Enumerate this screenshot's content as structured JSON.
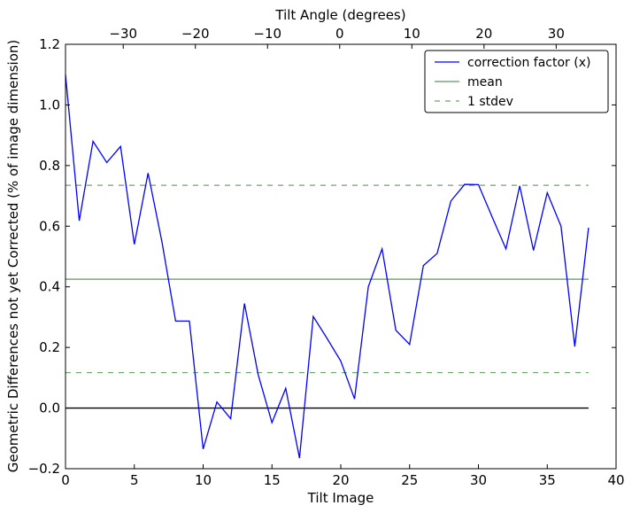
{
  "chart_data": {
    "type": "line",
    "xlabel": "Tilt Image",
    "ylabel": "Geometric Differences not yet Corrected (% of image dimension)",
    "top_xlabel": "Tilt Angle (degrees)",
    "xlim": [
      0,
      40
    ],
    "ylim": [
      -0.2,
      1.2
    ],
    "top_xlim": [
      -38,
      38.3
    ],
    "xticks": [
      0,
      5,
      10,
      15,
      20,
      25,
      30,
      35,
      40
    ],
    "yticks": [
      -0.2,
      0.0,
      0.2,
      0.4,
      0.6,
      0.8,
      1.0,
      1.2
    ],
    "ytick_labels": [
      "−0.2",
      "0.0",
      "0.2",
      "0.4",
      "0.6",
      "0.8",
      "1.0",
      "1.2"
    ],
    "top_xticks": [
      -30,
      -20,
      -10,
      0,
      10,
      20,
      30
    ],
    "top_xtick_labels": [
      "−30",
      "−20",
      "−10",
      "0",
      "10",
      "20",
      "30"
    ],
    "grid": false,
    "legend_position": "top-right",
    "series": [
      {
        "name": "correction factor (x)",
        "color": "#0000ff",
        "style": "solid",
        "x": [
          0,
          1,
          2,
          3,
          4,
          5,
          6,
          7,
          8,
          9,
          10,
          11,
          12,
          13,
          14,
          15,
          16,
          17,
          18,
          19,
          20,
          21,
          22,
          23,
          24,
          25,
          26,
          27,
          28,
          29,
          30,
          31,
          32,
          33,
          34,
          35,
          36,
          37,
          38
        ],
        "y": [
          1.1,
          0.618,
          0.88,
          0.81,
          0.863,
          0.54,
          0.775,
          0.55,
          0.287,
          0.287,
          -0.135,
          0.02,
          -0.035,
          0.345,
          0.11,
          -0.048,
          0.065,
          -0.165,
          0.302,
          0.23,
          0.155,
          0.03,
          0.4,
          0.525,
          0.257,
          0.21,
          0.47,
          0.51,
          0.683,
          0.738,
          0.737,
          0.63,
          0.525,
          0.733,
          0.52,
          0.71,
          0.6,
          0.203,
          0.595
        ]
      },
      {
        "name": "mean",
        "color": "#5a9a5a",
        "style": "solid",
        "hline": 0.425,
        "x": [
          0,
          38
        ]
      },
      {
        "name": "1 stdev",
        "color": "#6aa86a",
        "style": "dashed",
        "hlines": [
          0.735,
          0.117
        ],
        "x": [
          0,
          38
        ]
      }
    ],
    "zero_line": {
      "y": 0.0,
      "x": [
        0,
        38
      ],
      "color": "#000000"
    }
  }
}
